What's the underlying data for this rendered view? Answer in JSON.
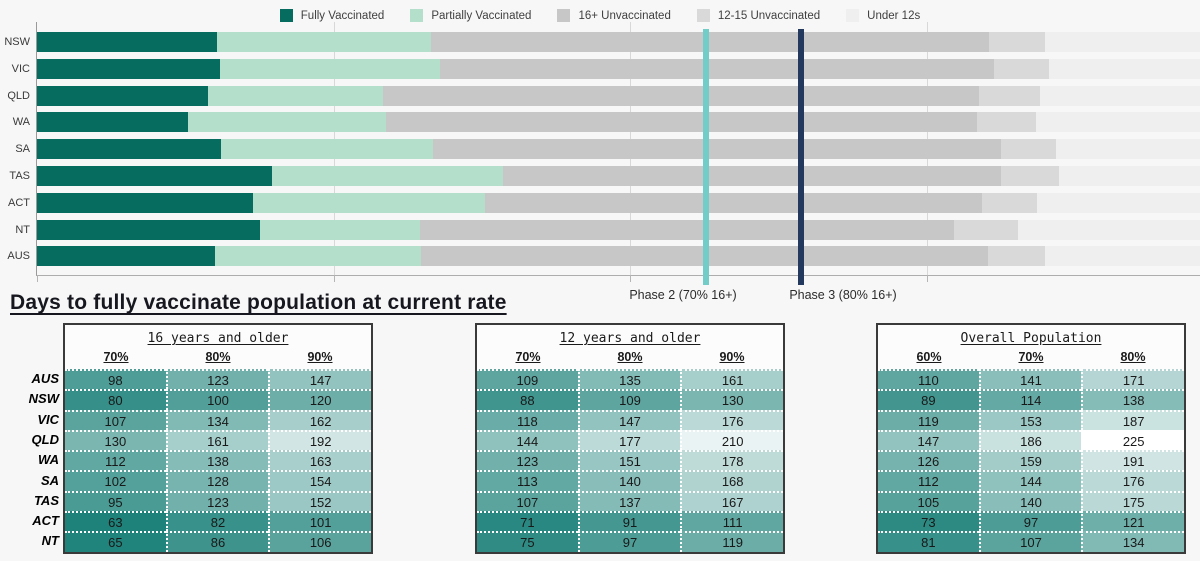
{
  "days_title": "Days to fully vaccinate population at current rate",
  "colors": {
    "background": "#F7F7F7",
    "fully_vaccinated": "#076C60",
    "partially_vaccinated": "#B4DFCA",
    "unvaccinated_16plus": "#C7C7C7",
    "unvaccinated_12_15": "#D9D9D9",
    "under_12s": "#EFEFEF",
    "phase2_line": "#72CCC8",
    "phase3_line": "#24395E",
    "table_border": "#3A3A3A"
  },
  "chart_data": [
    {
      "type": "bar",
      "stacked": true,
      "orientation": "horizontal",
      "units": "percent of total population",
      "categories": [
        "NSW",
        "VIC",
        "QLD",
        "WA",
        "SA",
        "TAS",
        "ACT",
        "NT",
        "AUS"
      ],
      "series": [
        {
          "name": "Fully Vaccinated",
          "color": "#076C60",
          "values": [
            15.2,
            15.4,
            14.4,
            12.7,
            15.5,
            19.8,
            18.2,
            18.8,
            15.0
          ]
        },
        {
          "name": "Partially Vaccinated",
          "color": "#B4DFCA",
          "values": [
            18.0,
            18.6,
            14.8,
            16.7,
            17.9,
            19.5,
            19.6,
            13.5,
            17.4
          ]
        },
        {
          "name": "16+ Unvaccinated",
          "color": "#C7C7C7",
          "values": [
            47.1,
            46.7,
            50.2,
            49.9,
            47.9,
            42.0,
            41.9,
            45.0,
            47.8
          ]
        },
        {
          "name": "12-15 Unvaccinated",
          "color": "#D9D9D9",
          "values": [
            4.7,
            4.6,
            5.2,
            4.9,
            4.6,
            4.9,
            4.6,
            5.4,
            4.8
          ]
        },
        {
          "name": "Under 12s",
          "color": "#EFEFEF",
          "values": [
            15.0,
            14.7,
            15.4,
            15.8,
            14.1,
            13.8,
            15.7,
            17.3,
            15.0
          ]
        }
      ],
      "x_axis": {
        "range": [
          0,
          100
        ],
        "gridlines_pct": [
          25,
          50,
          75
        ],
        "ticks_pct": [
          0,
          25,
          50,
          75,
          100
        ]
      },
      "reference_lines": [
        {
          "label": "Phase 2 (70% 16+)",
          "position_pct": 56.4,
          "color": "#72CCC8"
        },
        {
          "label": "Phase 3 (80% 16+)",
          "position_pct": 64.4,
          "color": "#24395E"
        }
      ],
      "legend_position": "top"
    },
    {
      "type": "table",
      "title": "16 years and older",
      "columns": [
        "70%",
        "80%",
        "90%"
      ],
      "row_labels": [
        "AUS",
        "NSW",
        "VIC",
        "QLD",
        "WA",
        "SA",
        "TAS",
        "ACT",
        "NT"
      ],
      "values": [
        [
          98,
          123,
          147
        ],
        [
          80,
          100,
          120
        ],
        [
          107,
          134,
          162
        ],
        [
          130,
          161,
          192
        ],
        [
          112,
          138,
          163
        ],
        [
          102,
          128,
          154
        ],
        [
          95,
          123,
          152
        ],
        [
          63,
          82,
          101
        ],
        [
          65,
          86,
          106
        ]
      ]
    },
    {
      "type": "table",
      "title": "12 years and older",
      "columns": [
        "70%",
        "80%",
        "90%"
      ],
      "row_labels": [
        "AUS",
        "NSW",
        "VIC",
        "QLD",
        "WA",
        "SA",
        "TAS",
        "ACT",
        "NT"
      ],
      "values": [
        [
          109,
          135,
          161
        ],
        [
          88,
          109,
          130
        ],
        [
          118,
          147,
          176
        ],
        [
          144,
          177,
          210
        ],
        [
          123,
          151,
          178
        ],
        [
          113,
          140,
          168
        ],
        [
          107,
          137,
          167
        ],
        [
          71,
          91,
          111
        ],
        [
          75,
          97,
          119
        ]
      ]
    },
    {
      "type": "table",
      "title": "Overall Population",
      "columns": [
        "60%",
        "70%",
        "80%"
      ],
      "row_labels": [
        "AUS",
        "NSW",
        "VIC",
        "QLD",
        "WA",
        "SA",
        "TAS",
        "ACT",
        "NT"
      ],
      "values": [
        [
          110,
          141,
          171
        ],
        [
          89,
          114,
          138
        ],
        [
          119,
          153,
          187
        ],
        [
          147,
          186,
          225
        ],
        [
          126,
          159,
          191
        ],
        [
          112,
          144,
          176
        ],
        [
          105,
          140,
          175
        ],
        [
          73,
          97,
          121
        ],
        [
          81,
          107,
          134
        ]
      ]
    }
  ],
  "color_scale": {
    "min_value": 63,
    "min_color": "#1E827A",
    "max_value": 225,
    "max_color": "#FFFFFF"
  }
}
